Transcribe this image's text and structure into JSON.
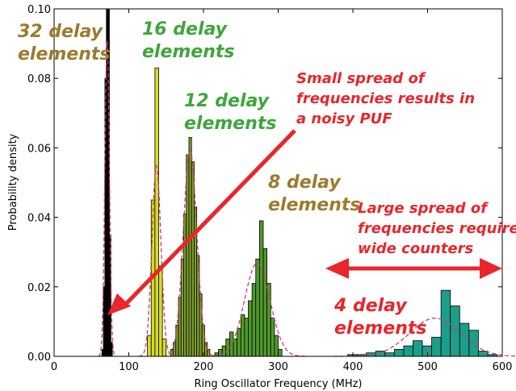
{
  "chart_data": {
    "type": "bar",
    "xlabel": "Ring Oscillator Frequency (MHz)",
    "ylabel": "Probability density",
    "xlim": [
      0,
      600
    ],
    "ylim": [
      0,
      0.1
    ],
    "xticks": [
      "0",
      "100",
      "200",
      "300",
      "400",
      "500",
      "600"
    ],
    "yticks": [
      "0.00",
      "0.02",
      "0.04",
      "0.06",
      "0.08",
      "0.10"
    ],
    "grid": false,
    "series": [
      {
        "name": "32 delay elements",
        "color": "#000000",
        "bin_width": 2,
        "x": [
          64,
          66,
          68,
          70,
          72,
          74,
          76
        ],
        "values": [
          0.002,
          0.02,
          0.08,
          0.1,
          0.1,
          0.035,
          0.004
        ],
        "fit": {
          "mean": 71,
          "sd": 3
        }
      },
      {
        "name": "16 delay elements",
        "color": "#d4dc2a",
        "bin_width": 5,
        "x": [
          125,
          130,
          135,
          140,
          145
        ],
        "values": [
          0.006,
          0.045,
          0.083,
          0.026,
          0.005
        ],
        "fit": {
          "mean": 137,
          "sd": 6
        }
      },
      {
        "name": "12 delay elements",
        "color": "#7ea12b",
        "bin_width": 3.5,
        "x": [
          156,
          159.5,
          163,
          166.5,
          170,
          173.5,
          177,
          180.5,
          184,
          187.5,
          191,
          194.5,
          198,
          201.5,
          205
        ],
        "values": [
          0.002,
          0.004,
          0.009,
          0.017,
          0.028,
          0.041,
          0.058,
          0.063,
          0.056,
          0.043,
          0.029,
          0.018,
          0.009,
          0.004,
          0.002
        ],
        "fit": {
          "mean": 182,
          "sd": 9
        }
      },
      {
        "name": "8 delay elements",
        "color": "#4f9a2c",
        "bin_width": 5,
        "x": [
          215,
          220,
          225,
          230,
          235,
          240,
          245,
          250,
          255,
          260,
          265,
          270,
          275,
          280,
          285,
          290,
          295,
          300
        ],
        "values": [
          0.001,
          0.002,
          0.003,
          0.005,
          0.007,
          0.005,
          0.008,
          0.012,
          0.011,
          0.016,
          0.021,
          0.028,
          0.039,
          0.031,
          0.021,
          0.011,
          0.006,
          0.002
        ],
        "fit": {
          "mean": 272,
          "sd": 17
        }
      },
      {
        "name": "4 delay elements",
        "color": "#1b9e8a",
        "bin_width": 12.5,
        "x": [
          393,
          405.5,
          418,
          430.5,
          443,
          455.5,
          468,
          480.5,
          493,
          505.5,
          518,
          530.5,
          543,
          555.5,
          568,
          580.5
        ],
        "values": [
          0.0005,
          0.0005,
          0.001,
          0.0015,
          0.001,
          0.002,
          0.003,
          0.0045,
          0.003,
          0.0055,
          0.019,
          0.0145,
          0.0095,
          0.0075,
          0.0015,
          0.0005
        ],
        "fit": {
          "mean": 510,
          "sd": 34
        }
      }
    ]
  },
  "annotations": {
    "label_32": [
      "32 delay",
      "elements"
    ],
    "label_16": [
      "16 delay",
      "elements"
    ],
    "label_12": [
      "12 delay",
      "elements"
    ],
    "label_8": [
      "8 delay",
      "elements"
    ],
    "label_4": [
      "4 delay",
      "elements"
    ],
    "small_spread": [
      "Small spread of",
      "frequencies results in",
      "a noisy PUF"
    ],
    "large_spread": [
      "Large spread of",
      "frequencies requires",
      "wide counters"
    ]
  },
  "colors": {
    "gold_label": "#9c7b2f",
    "green_label": "#3fa63a",
    "red": "#e8262b",
    "fit_line": "#d2386b"
  }
}
